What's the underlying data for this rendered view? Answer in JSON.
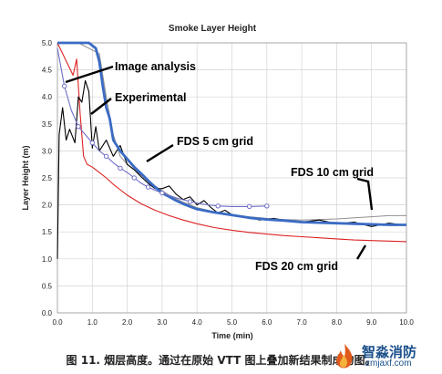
{
  "chart_data": {
    "type": "line",
    "title": "Smoke Layer Height",
    "xlabel": "Time (min)",
    "ylabel": "Layer Height (m)",
    "xlim": [
      0,
      10
    ],
    "ylim": [
      0,
      5
    ],
    "xticks": [
      "0.0",
      "1.0",
      "2.0",
      "3.0",
      "4.0",
      "5.0",
      "6.0",
      "7.0",
      "8.0",
      "9.0",
      "10.0"
    ],
    "yticks": [
      "0.0",
      "0.5",
      "1.0",
      "1.5",
      "2.0",
      "2.5",
      "3.0",
      "3.5",
      "4.0",
      "4.5",
      "5.0"
    ],
    "grid": true,
    "legend": "none",
    "series": [
      {
        "name": "Image analysis",
        "color": "#6e6ec8",
        "points": [
          [
            0,
            4.9
          ],
          [
            0.2,
            4.2
          ],
          [
            0.4,
            3.75
          ],
          [
            0.6,
            3.45
          ],
          [
            0.8,
            3.3
          ],
          [
            1.0,
            3.15
          ],
          [
            1.2,
            3.0
          ],
          [
            1.4,
            2.9
          ],
          [
            1.6,
            2.78
          ],
          [
            1.8,
            2.68
          ],
          [
            2.0,
            2.6
          ],
          [
            2.2,
            2.5
          ],
          [
            2.4,
            2.4
          ],
          [
            2.6,
            2.33
          ],
          [
            2.8,
            2.27
          ],
          [
            3.0,
            2.22
          ],
          [
            3.4,
            2.13
          ],
          [
            3.8,
            2.06
          ],
          [
            4.2,
            2.01
          ],
          [
            4.6,
            1.98
          ],
          [
            5.0,
            1.97
          ],
          [
            5.5,
            1.97
          ],
          [
            6.0,
            1.98
          ]
        ]
      },
      {
        "name": "Experimental",
        "color": "#000000",
        "points": [
          [
            0,
            1.0
          ],
          [
            0.05,
            3.3
          ],
          [
            0.15,
            3.8
          ],
          [
            0.25,
            3.2
          ],
          [
            0.35,
            3.4
          ],
          [
            0.5,
            3.15
          ],
          [
            0.6,
            4.0
          ],
          [
            0.7,
            3.9
          ],
          [
            0.8,
            4.3
          ],
          [
            0.9,
            4.1
          ],
          [
            1.0,
            3.05
          ],
          [
            1.1,
            3.45
          ],
          [
            1.2,
            3.0
          ],
          [
            1.4,
            3.2
          ],
          [
            1.6,
            2.9
          ],
          [
            1.8,
            3.1
          ],
          [
            2.0,
            2.75
          ],
          [
            2.2,
            2.65
          ],
          [
            2.4,
            2.52
          ],
          [
            2.6,
            2.4
          ],
          [
            2.8,
            2.3
          ],
          [
            3.0,
            2.3
          ],
          [
            3.2,
            2.35
          ],
          [
            3.4,
            2.2
          ],
          [
            3.6,
            2.1
          ],
          [
            3.8,
            2.15
          ],
          [
            4.0,
            2.0
          ],
          [
            4.2,
            2.08
          ],
          [
            4.4,
            1.95
          ],
          [
            4.6,
            1.85
          ],
          [
            4.8,
            1.9
          ],
          [
            5.0,
            1.82
          ],
          [
            5.4,
            1.78
          ],
          [
            5.8,
            1.72
          ],
          [
            6.2,
            1.75
          ],
          [
            6.6,
            1.7
          ],
          [
            7.0,
            1.68
          ],
          [
            7.5,
            1.72
          ],
          [
            8.0,
            1.65
          ],
          [
            8.5,
            1.68
          ],
          [
            9.0,
            1.6
          ],
          [
            9.5,
            1.66
          ],
          [
            10.0,
            1.62
          ]
        ]
      },
      {
        "name": "FDS 5 cm grid",
        "color": "#3a6bc4",
        "points": [
          [
            0,
            5.0
          ],
          [
            0.4,
            5.0
          ],
          [
            0.9,
            5.0
          ],
          [
            1.1,
            4.9
          ],
          [
            1.2,
            4.65
          ],
          [
            1.3,
            4.2
          ],
          [
            1.4,
            3.8
          ],
          [
            1.5,
            3.6
          ],
          [
            1.6,
            3.2
          ],
          [
            1.8,
            3.0
          ],
          [
            2.0,
            2.85
          ],
          [
            2.2,
            2.7
          ],
          [
            2.4,
            2.58
          ],
          [
            2.6,
            2.45
          ],
          [
            2.8,
            2.33
          ],
          [
            3.0,
            2.22
          ],
          [
            3.2,
            2.15
          ],
          [
            3.4,
            2.08
          ],
          [
            3.6,
            2.02
          ],
          [
            3.8,
            1.97
          ],
          [
            4.0,
            1.92
          ],
          [
            4.5,
            1.86
          ],
          [
            5.0,
            1.81
          ],
          [
            5.5,
            1.76
          ],
          [
            6.0,
            1.73
          ],
          [
            6.5,
            1.71
          ],
          [
            7.0,
            1.68
          ],
          [
            7.5,
            1.67
          ],
          [
            8.0,
            1.66
          ],
          [
            8.5,
            1.65
          ],
          [
            9.0,
            1.64
          ],
          [
            9.5,
            1.63
          ],
          [
            10.0,
            1.63
          ]
        ]
      },
      {
        "name": "FDS 10 cm grid",
        "color": "#909090",
        "points": [
          [
            0,
            5.0
          ],
          [
            0.6,
            5.0
          ],
          [
            1.2,
            4.8
          ],
          [
            1.4,
            4.0
          ],
          [
            1.6,
            3.3
          ],
          [
            1.8,
            2.9
          ],
          [
            2.0,
            2.75
          ],
          [
            2.4,
            2.55
          ],
          [
            2.8,
            2.35
          ],
          [
            3.2,
            2.18
          ],
          [
            3.6,
            2.05
          ],
          [
            4.0,
            1.95
          ],
          [
            4.5,
            1.87
          ],
          [
            5.0,
            1.82
          ],
          [
            5.5,
            1.78
          ],
          [
            6.0,
            1.75
          ],
          [
            6.5,
            1.73
          ],
          [
            7.0,
            1.72
          ],
          [
            7.5,
            1.73
          ],
          [
            8.0,
            1.74
          ],
          [
            8.5,
            1.76
          ],
          [
            9.0,
            1.78
          ],
          [
            9.5,
            1.8
          ],
          [
            10.0,
            1.8
          ]
        ]
      },
      {
        "name": "FDS 20 cm grid",
        "color": "#dd2222",
        "points": [
          [
            0,
            5.0
          ],
          [
            0.3,
            4.6
          ],
          [
            0.45,
            4.4
          ],
          [
            0.55,
            4.7
          ],
          [
            0.65,
            3.7
          ],
          [
            0.75,
            2.9
          ],
          [
            0.85,
            2.75
          ],
          [
            1.0,
            2.7
          ],
          [
            1.2,
            2.6
          ],
          [
            1.4,
            2.5
          ],
          [
            1.6,
            2.38
          ],
          [
            1.8,
            2.28
          ],
          [
            2.0,
            2.18
          ],
          [
            2.4,
            2.02
          ],
          [
            2.8,
            1.9
          ],
          [
            3.2,
            1.8
          ],
          [
            3.6,
            1.72
          ],
          [
            4.0,
            1.65
          ],
          [
            4.5,
            1.58
          ],
          [
            5.0,
            1.53
          ],
          [
            5.5,
            1.49
          ],
          [
            6.0,
            1.46
          ],
          [
            6.5,
            1.43
          ],
          [
            7.0,
            1.41
          ],
          [
            7.5,
            1.39
          ],
          [
            8.0,
            1.37
          ],
          [
            8.5,
            1.35
          ],
          [
            9.0,
            1.34
          ],
          [
            9.5,
            1.33
          ],
          [
            10.0,
            1.32
          ]
        ]
      }
    ],
    "annotations": [
      {
        "text": "Image analysis",
        "color": "#000000"
      },
      {
        "text": "Experimental",
        "color": "#000000"
      },
      {
        "text": "FDS 5 cm grid",
        "color": "#000000"
      },
      {
        "text": "FDS 10 cm grid",
        "color": "#000000"
      },
      {
        "text": "FDS 20 cm grid",
        "color": "#000000"
      }
    ]
  },
  "caption": "图 11. 烟层高度。通过在原始 VTT 图上叠加新结果制成的图。",
  "watermark": {
    "name": "智淼消防",
    "url": "zmjaxf.com"
  }
}
